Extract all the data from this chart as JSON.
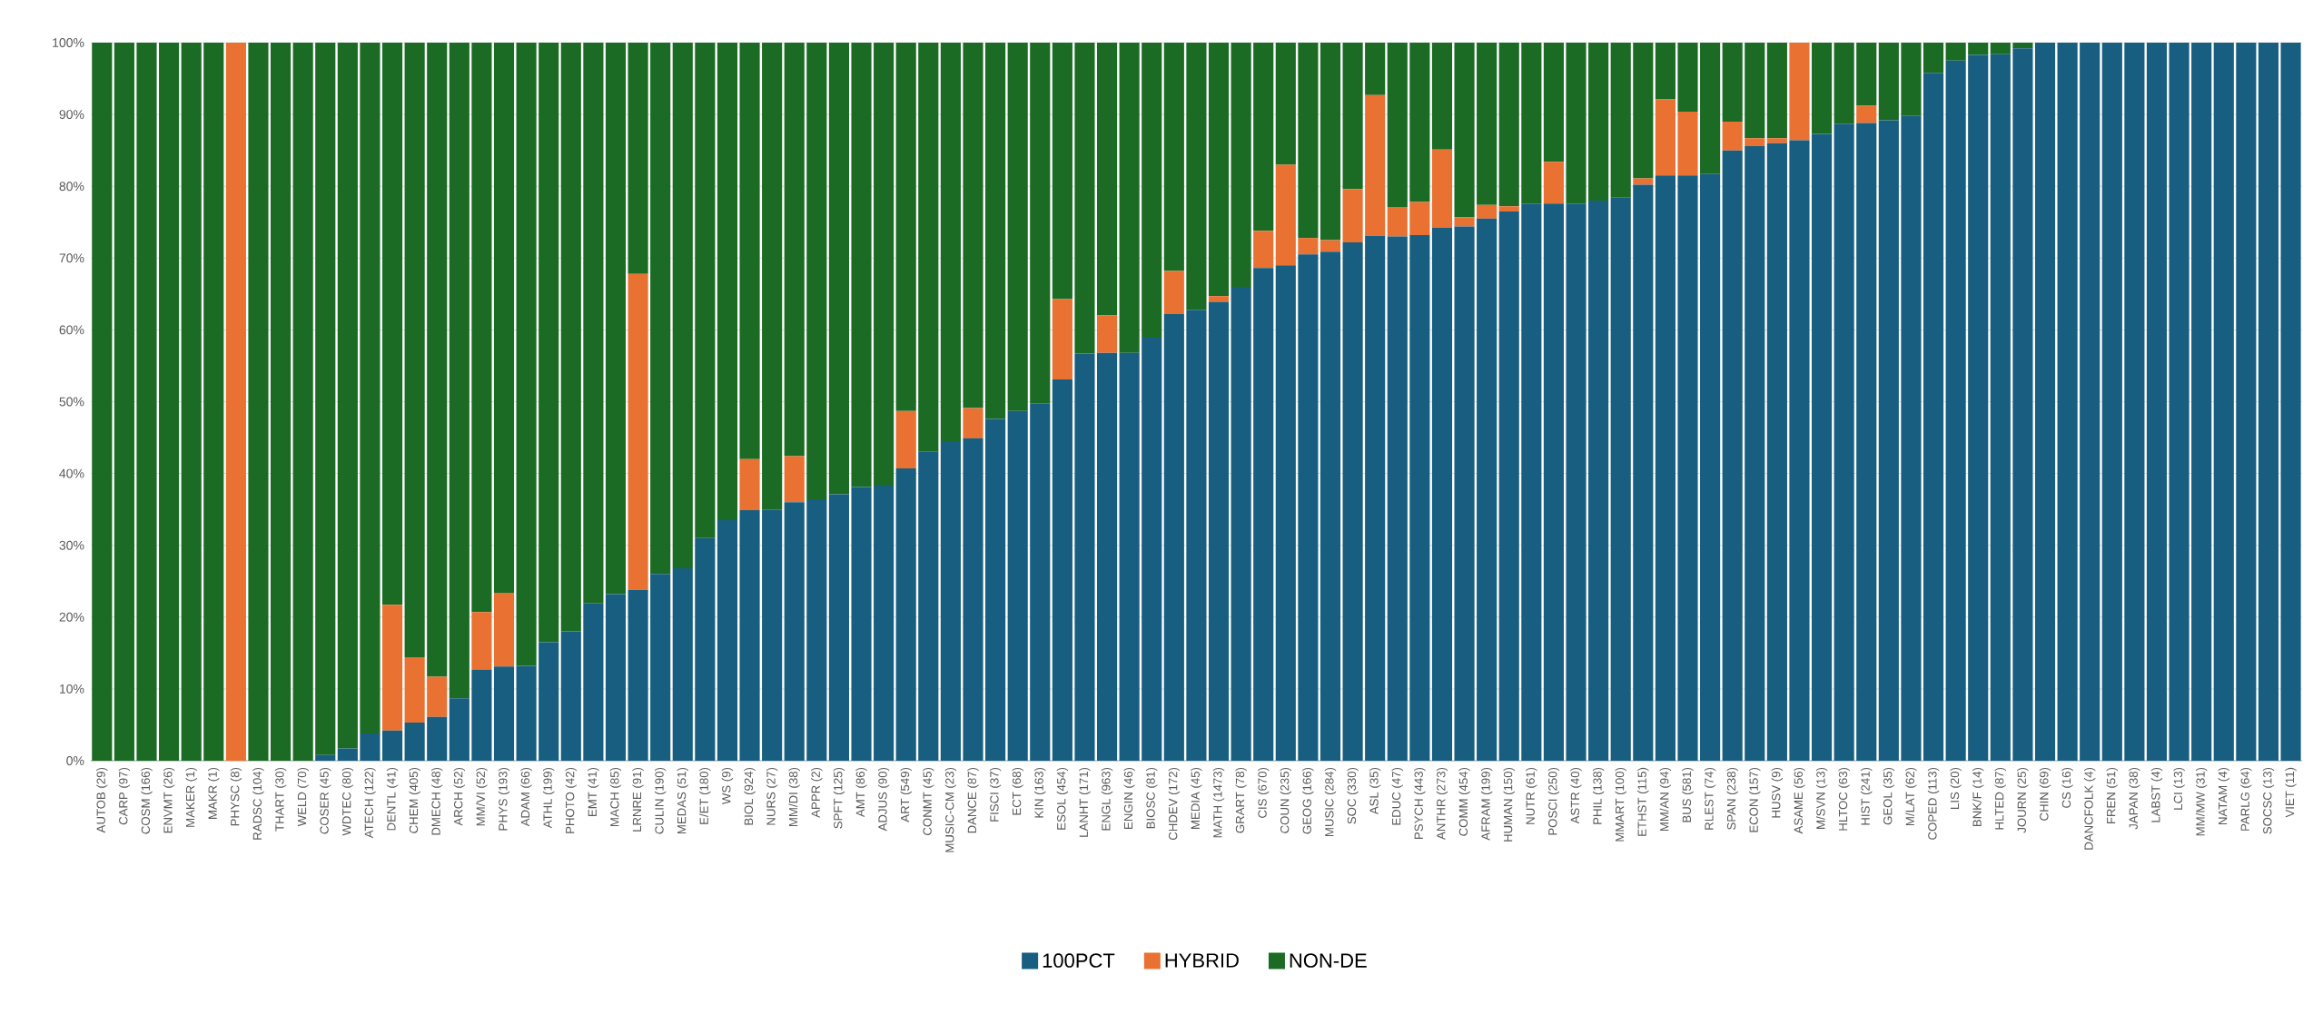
{
  "chart_data": {
    "type": "bar",
    "stacked": true,
    "grid": "y",
    "legend": "bottom",
    "categories": [
      "AUTOB (29)",
      "CARP (97)",
      "COSM (166)",
      "ENVMT (26)",
      "MAKER (1)",
      "MAKR (1)",
      "PHYSC (8)",
      "RADSC (104)",
      "THART (30)",
      "WELD (70)",
      "COSER (45)",
      "WDTEC (80)",
      "ATECH (122)",
      "DENTL (41)",
      "CHEM (405)",
      "DMECH (48)",
      "ARCH (52)",
      "MM/VI (52)",
      "PHYS (193)",
      "ADAM (66)",
      "ATHL (199)",
      "PHOTO (42)",
      "EMT (41)",
      "MACH (85)",
      "LRNRE (91)",
      "CULIN (190)",
      "MEDAS (51)",
      "E/ET (180)",
      "WS (9)",
      "BIOL (924)",
      "NURS (27)",
      "MM/DI (38)",
      "APPR (2)",
      "SPFT (125)",
      "AMT (86)",
      "ADJUS (90)",
      "ART (549)",
      "CONMT (45)",
      "MUSIC-CM (23)",
      "DANCE (87)",
      "FISCI (37)",
      "ECT (68)",
      "KIN (163)",
      "ESOL (454)",
      "LANHT (171)",
      "ENGL (963)",
      "ENGIN (46)",
      "BIOSC (81)",
      "CHDEV (172)",
      "MEDIA (45)",
      "MATH (1473)",
      "GRART (78)",
      "CIS (670)",
      "COUN (235)",
      "GEOG (166)",
      "MUSIC (284)",
      "SOC (330)",
      "ASL (35)",
      "EDUC (47)",
      "PSYCH (443)",
      "ANTHR (273)",
      "COMM (454)",
      "AFRAM (199)",
      "HUMAN (150)",
      "NUTR (61)",
      "POSCI (250)",
      "ASTR (40)",
      "PHIL (138)",
      "MMART (100)",
      "ETHST (115)",
      "MM/AN (94)",
      "BUS (581)",
      "RLEST (74)",
      "SPAN (238)",
      "ECON (157)",
      "HUSV (9)",
      "ASAME (56)",
      "M/SVN (13)",
      "HLTOC (63)",
      "HIST (241)",
      "GEOL (35)",
      "M/LAT (62)",
      "COPED (113)",
      "LIS (20)",
      "BNK/F (14)",
      "HLTED (87)",
      "JOURN (25)",
      "CHIN (69)",
      "CS (16)",
      "DANCFOLK (4)",
      "FREN (51)",
      "JAPAN (38)",
      "LABST (4)",
      "LCI (13)",
      "MM/MW (31)",
      "NATAM (4)",
      "PARLG (64)",
      "SOCSC (13)",
      "VIET (11)"
    ],
    "series": [
      {
        "name": "100PCT",
        "color": "#175e80",
        "values": [
          0,
          0,
          0,
          0,
          0,
          0,
          0,
          0,
          0,
          0,
          0.8,
          1.7,
          3.8,
          4.2,
          5.3,
          6.1,
          8.7,
          12.7,
          13.1,
          13.2,
          16.5,
          18,
          21.9,
          23.2,
          23.8,
          26,
          26.8,
          31,
          33.5,
          34.9,
          35,
          36,
          36.4,
          37.1,
          38.1,
          38.3,
          40.7,
          43,
          44.5,
          44.9,
          47.6,
          48.7,
          49.7,
          53.1,
          56.7,
          56.8,
          56.8,
          58.9,
          62.2,
          62.8,
          63.9,
          66,
          68.6,
          69,
          70.5,
          70.9,
          72.2,
          73.1,
          73,
          73.2,
          74.2,
          74.4,
          75.5,
          76.5,
          77.6,
          77.6,
          77.6,
          78,
          78.4,
          80.2,
          81.5,
          81.5,
          81.7,
          85,
          85.6,
          86,
          86.4,
          87.3,
          88.7,
          88.8,
          89.2,
          89.8,
          95.8,
          97.5,
          98.3,
          98.4,
          99.2,
          100,
          100,
          100,
          100,
          100,
          100,
          100,
          100,
          100,
          100,
          100,
          100
        ]
      },
      {
        "name": "HYBRID",
        "color": "#e97132",
        "values": [
          0,
          0,
          0,
          0,
          0,
          0,
          100,
          0,
          0,
          0,
          0,
          0,
          0,
          17.5,
          9.1,
          5.6,
          0,
          8,
          10.3,
          0,
          0,
          0,
          0,
          0,
          44,
          0,
          0,
          0,
          0,
          7.1,
          0,
          6.4,
          0,
          0,
          0,
          0,
          8,
          0,
          0,
          4.2,
          0,
          0,
          0,
          11.2,
          0,
          5.2,
          0,
          0,
          6,
          0,
          0.8,
          0,
          5.2,
          14,
          2.3,
          1.6,
          7.4,
          19.6,
          4.1,
          4.6,
          10.9,
          1.3,
          1.9,
          0.7,
          0,
          5.8,
          0,
          0,
          0,
          0.9,
          10.6,
          8.9,
          0,
          4,
          1.1,
          0.7,
          13.6,
          0,
          0,
          2.4,
          0,
          0,
          0,
          0,
          0,
          0,
          0,
          0,
          0,
          0,
          0,
          0,
          0,
          0,
          0,
          0,
          0,
          0,
          0
        ]
      },
      {
        "name": "NON-DE",
        "color": "#1b6b24",
        "values": [
          100,
          100,
          100,
          100,
          100,
          100,
          0,
          100,
          100,
          100,
          99.2,
          98.3,
          96.2,
          78.3,
          85.6,
          88.3,
          91.3,
          79.3,
          76.6,
          86.8,
          83.5,
          82,
          78.1,
          76.8,
          32.2,
          74,
          73.2,
          69,
          66.5,
          58,
          65,
          57.6,
          63.6,
          62.9,
          61.9,
          61.7,
          51.3,
          57,
          55.5,
          50.9,
          52.4,
          51.3,
          50.3,
          35.7,
          43.3,
          38,
          43.2,
          41.1,
          31.8,
          37.2,
          35.3,
          34,
          26.2,
          17,
          27.2,
          27.5,
          20.4,
          7.3,
          22.9,
          22.2,
          14.9,
          24.3,
          22.6,
          22.8,
          22.4,
          16.6,
          22.4,
          22,
          21.6,
          18.9,
          7.9,
          9.6,
          18.3,
          11,
          13.3,
          13.3,
          0,
          12.7,
          11.3,
          8.8,
          10.8,
          10.2,
          4.2,
          2.5,
          1.7,
          1.6,
          0.8,
          0,
          0,
          0,
          0,
          0,
          0,
          0,
          0,
          0,
          0,
          0,
          0
        ]
      }
    ],
    "ylim": [
      0,
      100
    ],
    "yticks": [
      {
        "value": 0,
        "label": "0%"
      },
      {
        "value": 10,
        "label": "10%"
      },
      {
        "value": 20,
        "label": "20%"
      },
      {
        "value": 30,
        "label": "30%"
      },
      {
        "value": 40,
        "label": "40%"
      },
      {
        "value": 50,
        "label": "50%"
      },
      {
        "value": 60,
        "label": "60%"
      },
      {
        "value": 70,
        "label": "70%"
      },
      {
        "value": 80,
        "label": "80%"
      },
      {
        "value": 90,
        "label": "90%"
      },
      {
        "value": 100,
        "label": "100%"
      }
    ]
  }
}
